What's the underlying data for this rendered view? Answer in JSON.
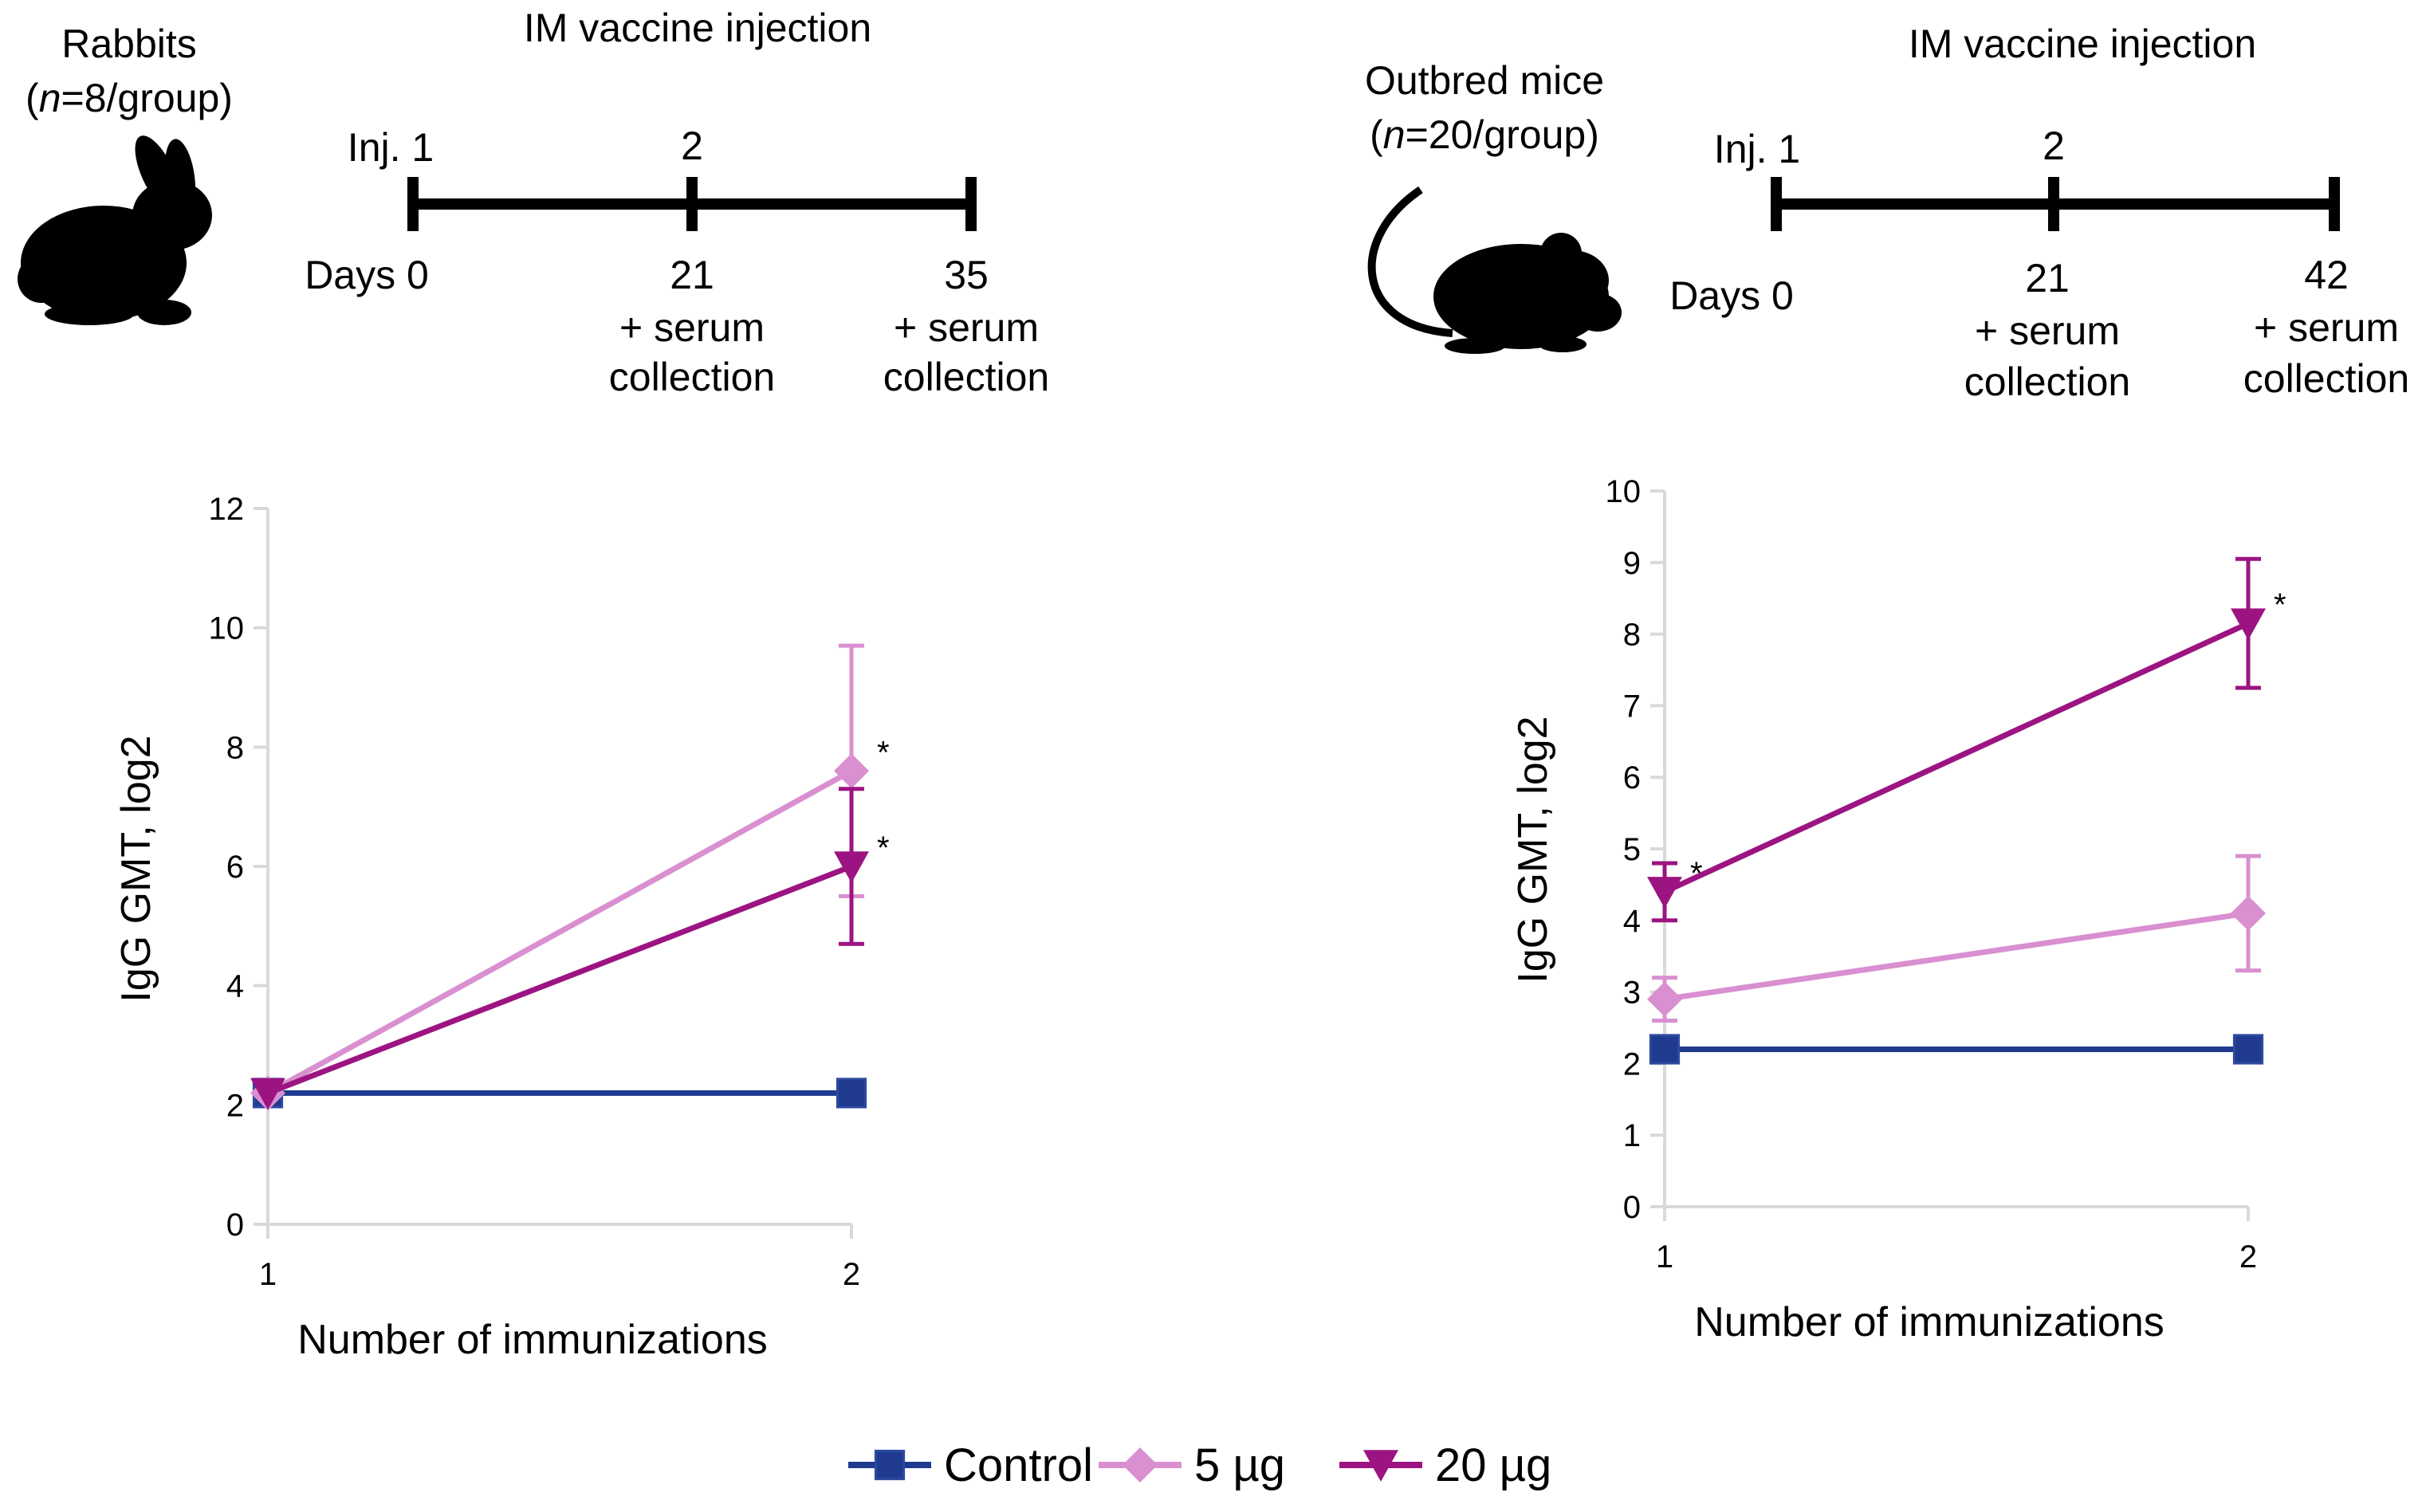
{
  "colors": {
    "control": "#1f3a8f",
    "five": "#d98fd0",
    "twenty": "#9c1481",
    "axis": "#d9d9d9",
    "timeline": "#000000"
  },
  "icons": {
    "left_animal": "rabbit-icon",
    "right_animal": "mouse-icon"
  },
  "left_panel": {
    "animal": "Rabbits",
    "n_italic": "n",
    "n_rest": "=8/group)",
    "n_open": "(",
    "schedule_title": "IM vaccine injection",
    "inj_label": "Inj. 1",
    "inj_two": "2",
    "days_label": "Days 0",
    "day_mid": "21",
    "day_mid_line1": "+ serum",
    "day_mid_line2": "collection",
    "day_end": "35",
    "day_end_line1": "+ serum",
    "day_end_line2": "collection"
  },
  "right_panel": {
    "animal_line1": "Outbred mice",
    "n_open": "(",
    "n_italic": "n",
    "n_rest": "=20/group)",
    "schedule_title": "IM vaccine injection",
    "inj_label": "Inj. 1",
    "inj_two": "2",
    "days_label": "Days 0",
    "day_mid": "21",
    "day_mid_line1": "+ serum",
    "day_mid_line2": "collection",
    "day_end": "42",
    "day_end_line1": "+ serum",
    "day_end_line2": "collection"
  },
  "legend": {
    "entries": [
      {
        "key": "control",
        "label": "Control",
        "marker": "square"
      },
      {
        "key": "five",
        "label": "5 µg",
        "marker": "diamond"
      },
      {
        "key": "twenty",
        "label": "20 µg",
        "marker": "triangle-down"
      }
    ]
  },
  "chart_data": [
    {
      "type": "line",
      "title": "Rabbits",
      "xlabel": "Number of immunizations",
      "ylabel": "IgG GMT, log2",
      "x": [
        1,
        2
      ],
      "x_ticks": [
        "1",
        "2"
      ],
      "ylim": [
        0,
        12
      ],
      "y_ticks": [
        0,
        2,
        4,
        6,
        8,
        10,
        12
      ],
      "grid": false,
      "series": [
        {
          "name": "Control",
          "key": "control",
          "marker": "square",
          "values": [
            2.2,
            2.2
          ],
          "err_low": [
            null,
            null
          ],
          "err_high": [
            null,
            null
          ],
          "sig": [
            false,
            false
          ]
        },
        {
          "name": "5 µg",
          "key": "five",
          "marker": "diamond",
          "values": [
            2.2,
            7.6
          ],
          "err_low": [
            null,
            5.5
          ],
          "err_high": [
            null,
            9.7
          ],
          "sig": [
            false,
            true
          ]
        },
        {
          "name": "20 µg",
          "key": "twenty",
          "marker": "triangle-down",
          "values": [
            2.2,
            6.0
          ],
          "err_low": [
            null,
            4.7
          ],
          "err_high": [
            null,
            7.3
          ],
          "sig": [
            false,
            true
          ]
        }
      ],
      "annotations": [
        "*",
        "*"
      ]
    },
    {
      "type": "line",
      "title": "Outbred mice",
      "xlabel": "Number of immunizations",
      "ylabel": "IgG GMT, log2",
      "x": [
        1,
        2
      ],
      "x_ticks": [
        "1",
        "2"
      ],
      "ylim": [
        0,
        10
      ],
      "y_ticks": [
        0,
        1,
        2,
        3,
        4,
        5,
        6,
        7,
        8,
        9,
        10
      ],
      "grid": false,
      "series": [
        {
          "name": "Control",
          "key": "control",
          "marker": "square",
          "values": [
            2.2,
            2.2
          ],
          "err_low": [
            null,
            null
          ],
          "err_high": [
            null,
            null
          ],
          "sig": [
            false,
            false
          ]
        },
        {
          "name": "5 µg",
          "key": "five",
          "marker": "diamond",
          "values": [
            2.9,
            4.1
          ],
          "err_low": [
            2.6,
            3.3
          ],
          "err_high": [
            3.2,
            4.9
          ],
          "sig": [
            false,
            false
          ]
        },
        {
          "name": "20 µg",
          "key": "twenty",
          "marker": "triangle-down",
          "values": [
            4.4,
            8.15
          ],
          "err_low": [
            4.0,
            7.25
          ],
          "err_high": [
            4.8,
            9.05
          ],
          "sig": [
            true,
            true
          ]
        }
      ],
      "annotations": [
        "*",
        "*"
      ]
    }
  ]
}
